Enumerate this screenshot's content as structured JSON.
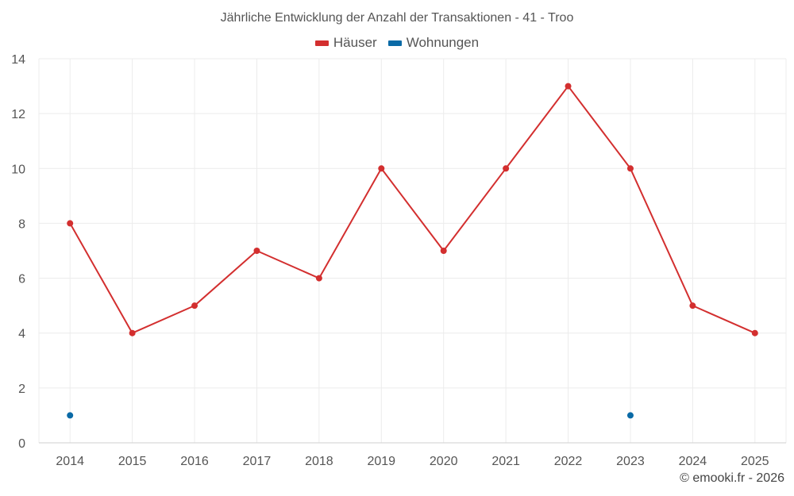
{
  "chart_data": {
    "type": "line",
    "title": "Jährliche Entwicklung der Anzahl der Transaktionen - 41 - Troo",
    "categories": [
      "2014",
      "2015",
      "2016",
      "2017",
      "2018",
      "2019",
      "2020",
      "2021",
      "2022",
      "2023",
      "2024",
      "2025"
    ],
    "ylim": [
      0,
      14
    ],
    "yticks": [
      0,
      2,
      4,
      6,
      8,
      10,
      12,
      14
    ],
    "grid": true,
    "legend_position": "top-center",
    "series": [
      {
        "name": "Häuser",
        "color": "#d32f2f",
        "values": [
          8,
          4,
          5,
          7,
          6,
          10,
          7,
          10,
          13,
          10,
          5,
          4
        ]
      },
      {
        "name": "Wohnungen",
        "color": "#0a6aa6",
        "values": [
          1,
          null,
          null,
          null,
          null,
          null,
          null,
          null,
          null,
          1,
          null,
          null
        ]
      }
    ]
  },
  "credit": "© emooki.fr - 2026"
}
